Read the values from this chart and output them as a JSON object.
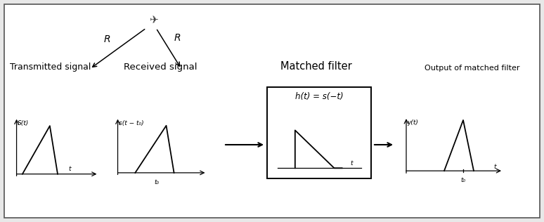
{
  "bg_color": "#e8e8e8",
  "panel_bg": "#ffffff",
  "sections": [
    "Transmitted signal",
    "Received signal",
    "Matched filter",
    "Output of matched filter"
  ],
  "transmitted_label": "S(t)",
  "received_label": "s(t − t₀)",
  "filter_label": "h(t) = s(−t)",
  "output_label": "y(t)",
  "t_label": "t",
  "t0_label": "t₀",
  "R_left": "R",
  "R_right": "R"
}
